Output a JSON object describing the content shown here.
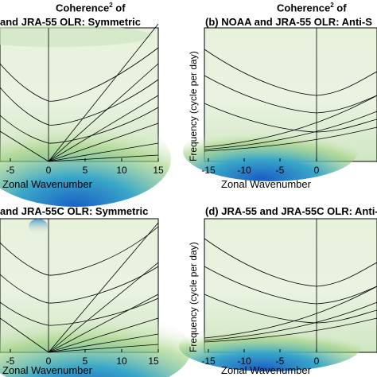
{
  "figure": {
    "header_left": {
      "text": "Coherence",
      "sup": "2",
      "suffix": " of"
    },
    "header_right": {
      "text": "Coherence",
      "sup": "2",
      "suffix": " of"
    },
    "panels": [
      {
        "id": "a",
        "title": "and JRA-55 OLR: Symmetric",
        "xlabel": "Zonal Wavenumber",
        "ylabel": ""
      },
      {
        "id": "b",
        "title": "(b) NOAA and JRA-55 OLR: Anti-S",
        "xlabel": "Zonal Wavenumber",
        "ylabel": "Frequency (cycle per day)"
      },
      {
        "id": "c",
        "title": "and JRA-55C OLR: Symmetric",
        "xlabel": "Zonal Wavenumber",
        "ylabel": ""
      },
      {
        "id": "d",
        "title": "(d) JRA-55 and JRA-55C OLR: Anti-",
        "xlabel": "Zonal Wavenumber",
        "ylabel": "Frequency (cycle per day)"
      }
    ],
    "ticks_left": [
      "-5",
      "0",
      "5",
      "10",
      "15"
    ],
    "ticks_right": [
      "-15",
      "-10",
      "-5",
      "0"
    ],
    "colors": {
      "high": "#1a5fc4",
      "mid": "#3aa7c9",
      "low": "#9ccf7a",
      "bg": "#eef4e4",
      "line": "#000000"
    }
  }
}
